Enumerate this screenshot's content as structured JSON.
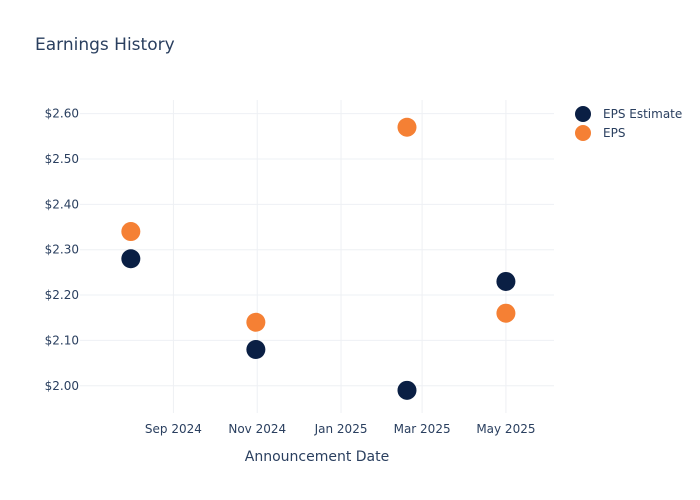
{
  "chart_data": {
    "type": "scatter",
    "title": "Earnings History",
    "xlabel": "Announcement Date",
    "ylabel": "",
    "x_axis_type": "date",
    "xlim": [
      "2024-06-25",
      "2025-06-05"
    ],
    "ylim": [
      1.94,
      2.63
    ],
    "x_ticks": [
      {
        "date": "2024-09-01",
        "label": "Sep 2024"
      },
      {
        "date": "2024-11-01",
        "label": "Nov 2024"
      },
      {
        "date": "2025-01-01",
        "label": "Jan 2025"
      },
      {
        "date": "2025-03-01",
        "label": "Mar 2025"
      },
      {
        "date": "2025-05-01",
        "label": "May 2025"
      }
    ],
    "y_ticks": [
      {
        "value": 2.0,
        "label": "$2.00"
      },
      {
        "value": 2.1,
        "label": "$2.10"
      },
      {
        "value": 2.2,
        "label": "$2.20"
      },
      {
        "value": 2.3,
        "label": "$2.30"
      },
      {
        "value": 2.4,
        "label": "$2.40"
      },
      {
        "value": 2.5,
        "label": "$2.50"
      },
      {
        "value": 2.6,
        "label": "$2.60"
      }
    ],
    "x": [
      "2024-08-01",
      "2024-10-31",
      "2025-02-18",
      "2025-05-01"
    ],
    "series": [
      {
        "name": "EPS Estimate",
        "color": "#0a1f44",
        "values": [
          2.28,
          2.08,
          1.99,
          2.23
        ]
      },
      {
        "name": "EPS",
        "color": "#f58034",
        "values": [
          2.34,
          2.14,
          2.57,
          2.16
        ]
      }
    ],
    "grid": true,
    "legend": "top-right"
  }
}
